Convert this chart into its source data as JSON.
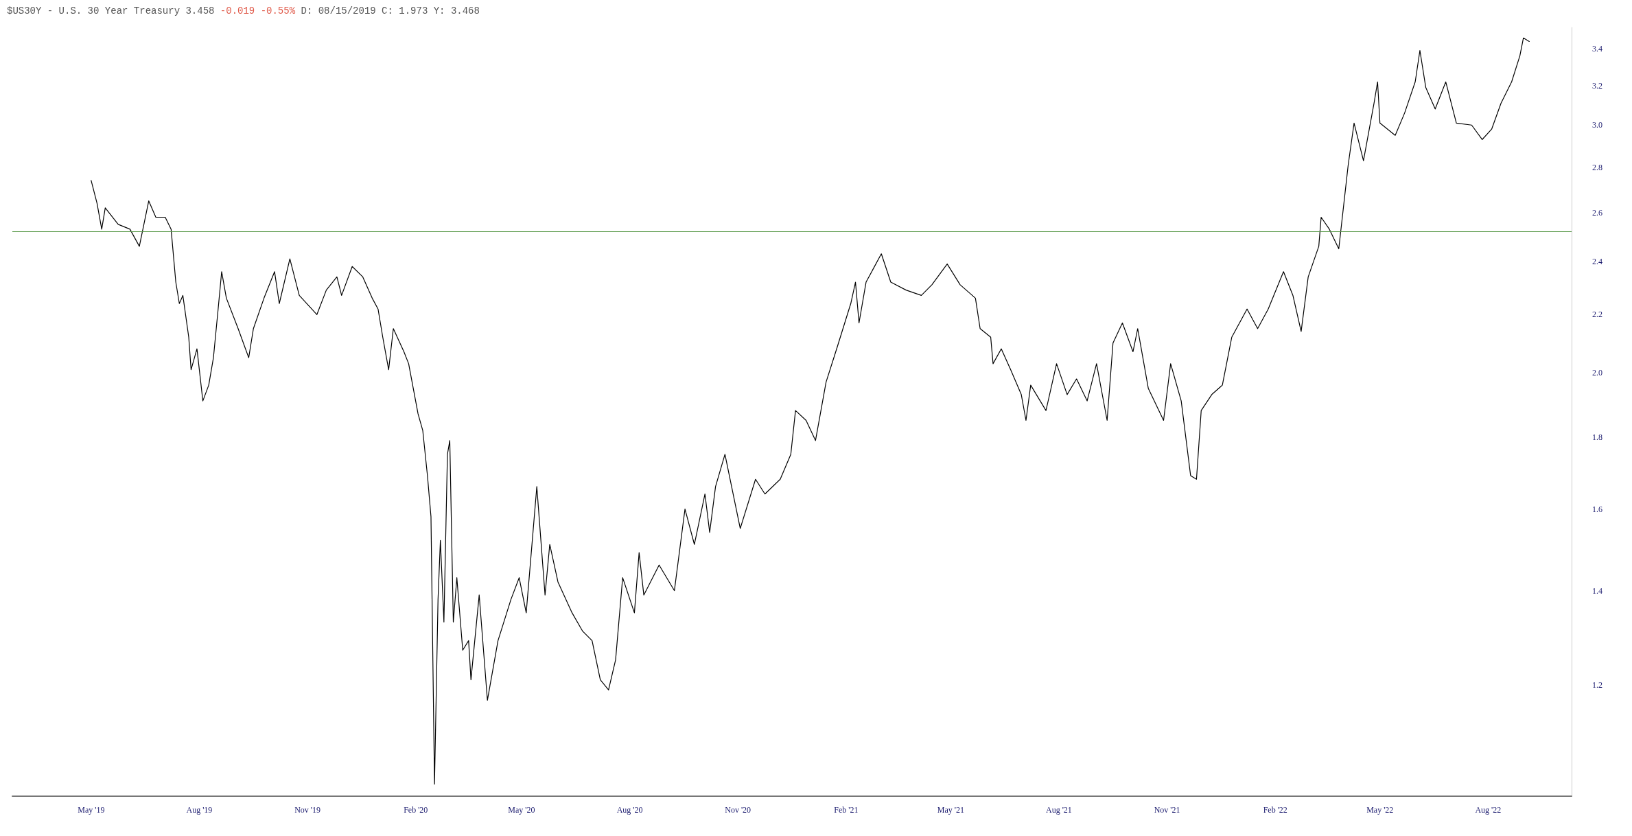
{
  "chart_data": {
    "type": "line",
    "title": "$US30Y - U.S. 30 Year Treasury 3.458",
    "subtitle": "-0.019 -0.55%",
    "annotations": [
      "D: 08/15/2019 C: 1.973 Y: 3.468"
    ],
    "x": [
      "2019-05-01",
      "2019-05-06",
      "2019-05-10",
      "2019-05-13",
      "2019-05-24",
      "2019-06-03",
      "2019-06-11",
      "2019-06-19",
      "2019-06-25",
      "2019-07-03",
      "2019-07-08",
      "2019-07-12",
      "2019-07-15",
      "2019-07-18",
      "2019-07-23",
      "2019-07-25",
      "2019-07-30",
      "2019-08-04",
      "2019-08-09",
      "2019-08-13",
      "2019-08-17",
      "2019-08-20",
      "2019-08-24",
      "2019-09-03",
      "2019-09-12",
      "2019-09-16",
      "2019-09-25",
      "2019-10-04",
      "2019-10-08",
      "2019-10-17",
      "2019-10-25",
      "2019-11-09",
      "2019-11-17",
      "2019-11-26",
      "2019-11-30",
      "2019-12-09",
      "2019-12-18",
      "2019-12-26",
      "2019-12-31",
      "2020-01-04",
      "2020-01-09",
      "2020-01-13",
      "2020-01-22",
      "2020-01-26",
      "2020-02-03",
      "2020-02-07",
      "2020-02-11",
      "2020-02-14",
      "2020-02-17",
      "2020-02-20",
      "2020-02-22",
      "2020-02-25",
      "2020-02-28",
      "2020-03-01",
      "2020-03-04",
      "2020-03-07",
      "2020-03-12",
      "2020-03-17",
      "2020-03-19",
      "2020-03-26",
      "2020-04-02",
      "2020-04-11",
      "2020-04-22",
      "2020-04-29",
      "2020-05-05",
      "2020-05-14",
      "2020-05-21",
      "2020-05-25",
      "2020-06-01",
      "2020-06-13",
      "2020-06-22",
      "2020-06-30",
      "2020-07-07",
      "2020-07-14",
      "2020-07-20",
      "2020-07-26",
      "2020-08-05",
      "2020-08-09",
      "2020-08-13",
      "2020-08-26",
      "2020-09-08",
      "2020-09-17",
      "2020-09-25",
      "2020-10-04",
      "2020-10-08",
      "2020-10-13",
      "2020-10-21",
      "2020-11-03",
      "2020-11-16",
      "2020-11-24",
      "2020-12-07",
      "2020-12-16",
      "2020-12-20",
      "2020-12-29",
      "2021-01-06",
      "2021-01-15",
      "2021-01-24",
      "2021-02-05",
      "2021-02-09",
      "2021-02-12",
      "2021-02-18",
      "2021-03-03",
      "2021-03-11",
      "2021-03-24",
      "2021-04-06",
      "2021-04-15",
      "2021-04-28",
      "2021-05-09",
      "2021-05-22",
      "2021-05-26",
      "2021-06-04",
      "2021-06-06",
      "2021-06-13",
      "2021-06-21",
      "2021-06-30",
      "2021-07-04",
      "2021-07-08",
      "2021-07-21",
      "2021-07-30",
      "2021-08-08",
      "2021-08-16",
      "2021-08-25",
      "2021-09-02",
      "2021-09-11",
      "2021-09-16",
      "2021-09-24",
      "2021-10-03",
      "2021-10-07",
      "2021-10-16",
      "2021-10-29",
      "2021-11-04",
      "2021-11-13",
      "2021-11-21",
      "2021-11-26",
      "2021-11-30",
      "2021-12-09",
      "2021-12-18",
      "2021-12-26",
      "2022-01-08",
      "2022-01-17",
      "2022-01-26",
      "2022-02-08",
      "2022-02-16",
      "2022-02-23",
      "2022-03-01",
      "2022-03-10",
      "2022-03-12",
      "2022-03-19",
      "2022-03-27",
      "2022-04-04",
      "2022-04-09",
      "2022-04-17",
      "2022-04-26",
      "2022-04-29",
      "2022-05-01",
      "2022-05-14",
      "2022-05-22",
      "2022-05-31",
      "2022-06-04",
      "2022-06-09",
      "2022-06-17",
      "2022-06-26",
      "2022-07-05",
      "2022-07-18",
      "2022-07-27",
      "2022-08-04",
      "2022-08-12",
      "2022-08-21",
      "2022-08-28",
      "2022-08-31",
      "2022-09-05"
    ],
    "series": [
      {
        "color": "#000000",
        "values": [
          2.74,
          2.64,
          2.53,
          2.62,
          2.55,
          2.53,
          2.46,
          2.65,
          2.58,
          2.58,
          2.53,
          2.32,
          2.24,
          2.27,
          2.12,
          2.01,
          2.08,
          1.91,
          1.96,
          2.05,
          2.22,
          2.36,
          2.26,
          2.15,
          2.05,
          2.15,
          2.26,
          2.36,
          2.24,
          2.41,
          2.27,
          2.2,
          2.29,
          2.34,
          2.27,
          2.38,
          2.34,
          2.26,
          2.22,
          2.12,
          2.01,
          2.15,
          2.07,
          2.03,
          1.87,
          1.82,
          1.69,
          1.58,
          1.02,
          1.38,
          1.52,
          1.33,
          1.75,
          1.79,
          1.33,
          1.43,
          1.27,
          1.29,
          1.21,
          1.39,
          1.17,
          1.29,
          1.38,
          1.43,
          1.35,
          1.66,
          1.39,
          1.51,
          1.42,
          1.35,
          1.31,
          1.29,
          1.21,
          1.19,
          1.25,
          1.43,
          1.35,
          1.49,
          1.39,
          1.46,
          1.4,
          1.6,
          1.51,
          1.64,
          1.54,
          1.66,
          1.75,
          1.55,
          1.68,
          1.64,
          1.68,
          1.75,
          1.88,
          1.85,
          1.79,
          1.97,
          2.08,
          2.24,
          2.32,
          2.17,
          2.32,
          2.43,
          2.32,
          2.29,
          2.27,
          2.31,
          2.39,
          2.31,
          2.26,
          2.15,
          2.12,
          2.03,
          2.08,
          2.01,
          1.93,
          1.85,
          1.96,
          1.88,
          2.03,
          1.93,
          1.98,
          1.91,
          2.03,
          1.85,
          2.1,
          2.17,
          2.07,
          2.15,
          1.95,
          1.85,
          2.03,
          1.91,
          1.69,
          1.68,
          1.88,
          1.93,
          1.96,
          2.12,
          2.22,
          2.15,
          2.22,
          2.36,
          2.27,
          2.14,
          2.34,
          2.46,
          2.58,
          2.53,
          2.45,
          2.81,
          3.01,
          2.83,
          3.11,
          3.22,
          3.01,
          2.95,
          3.06,
          3.22,
          3.39,
          3.19,
          3.08,
          3.22,
          3.01,
          3.0,
          2.93,
          2.98,
          3.11,
          3.22,
          3.36,
          3.46,
          3.44
        ]
      }
    ],
    "xlim": [
      "2019-02-23",
      "2022-10-11"
    ],
    "xticks": [
      {
        "value": "2019-05-01",
        "label": "May '19"
      },
      {
        "value": "2019-08-01",
        "label": "Aug '19"
      },
      {
        "value": "2019-11-01",
        "label": "Nov '19"
      },
      {
        "value": "2020-02-01",
        "label": "Feb '20"
      },
      {
        "value": "2020-05-01",
        "label": "May '20"
      },
      {
        "value": "2020-08-01",
        "label": "Aug '20"
      },
      {
        "value": "2020-11-01",
        "label": "Nov '20"
      },
      {
        "value": "2021-02-01",
        "label": "Feb '21"
      },
      {
        "value": "2021-05-01",
        "label": "May '21"
      },
      {
        "value": "2021-08-01",
        "label": "Aug '21"
      },
      {
        "value": "2021-11-01",
        "label": "Nov '21"
      },
      {
        "value": "2022-02-01",
        "label": "Feb '22"
      },
      {
        "value": "2022-05-01",
        "label": "May '22"
      },
      {
        "value": "2022-08-01",
        "label": "Aug '22"
      }
    ],
    "ylim": [
      1.0,
      3.52
    ],
    "yticks": [
      {
        "value": 1.2,
        "label": "1.2"
      },
      {
        "value": 1.4,
        "label": "1.4"
      },
      {
        "value": 1.6,
        "label": "1.6"
      },
      {
        "value": 1.8,
        "label": "1.8"
      },
      {
        "value": 2.0,
        "label": "2.0"
      },
      {
        "value": 2.2,
        "label": "2.2"
      },
      {
        "value": 2.4,
        "label": "2.4"
      },
      {
        "value": 2.6,
        "label": "2.6"
      },
      {
        "value": 2.8,
        "label": "2.8"
      },
      {
        "value": 3.0,
        "label": "3.0"
      },
      {
        "value": 3.2,
        "label": "3.2"
      },
      {
        "value": 3.4,
        "label": "3.4"
      }
    ],
    "log": "y",
    "marker": "none",
    "line_style": "solid",
    "ref_lines": [
      {
        "axis": "y",
        "value": 2.52,
        "color": "#5a9a4a"
      }
    ]
  }
}
